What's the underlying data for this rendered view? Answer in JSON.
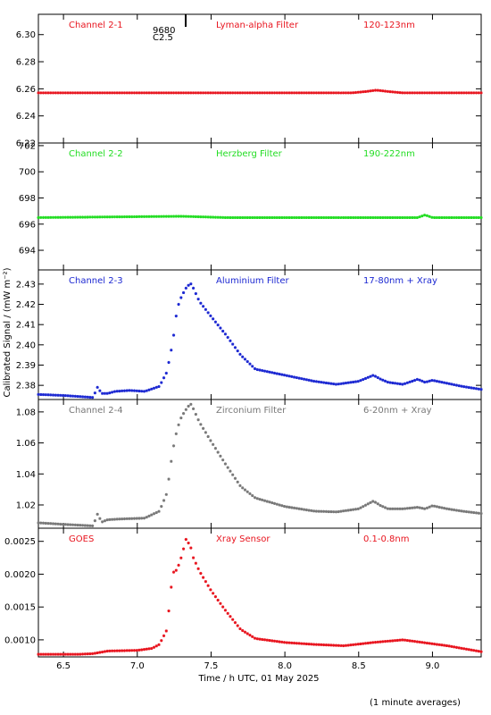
{
  "figure": {
    "ylabel": "Calibrated Signal / (mW m⁻²)",
    "xlabel": "Time / h UTC, 01 May 2025",
    "footer": "(1 minute averages)",
    "annotation_1": "9680",
    "annotation_2": "C2.5"
  },
  "chart_data": [
    {
      "type": "scatter",
      "channel": "Channel 2-1",
      "filter": "Lyman-alpha Filter",
      "band": "120-123nm",
      "color": "#e8141e",
      "ylim": [
        6.22,
        6.315
      ],
      "yticks": [
        "6.22",
        "6.24",
        "6.26",
        "6.28",
        "6.30"
      ],
      "xlim": [
        6.33,
        9.33
      ],
      "series": [
        {
          "x": [
            6.33,
            8.0,
            8.45,
            8.55,
            8.62,
            8.7,
            8.8,
            9.33
          ],
          "y": [
            6.257,
            6.257,
            6.257,
            6.258,
            6.259,
            6.258,
            6.257,
            6.257
          ]
        }
      ]
    },
    {
      "type": "scatter",
      "channel": "Channel 2-2",
      "filter": "Herzberg Filter",
      "band": "190-222nm",
      "color": "#22dd22",
      "ylim": [
        692.5,
        702.2
      ],
      "yticks": [
        "694",
        "696",
        "698",
        "700",
        "702"
      ],
      "xlim": [
        6.33,
        9.33
      ],
      "series": [
        {
          "x": [
            6.33,
            7.3,
            7.6,
            8.9,
            8.95,
            9.0,
            9.33
          ],
          "y": [
            696.5,
            696.6,
            696.5,
            696.5,
            696.7,
            696.5,
            696.5
          ]
        }
      ]
    },
    {
      "type": "scatter",
      "channel": "Channel 2-3",
      "filter": "Aluminium Filter",
      "band": "17-80nm + Xray",
      "color": "#1c28d2",
      "ylim": [
        2.373,
        2.437
      ],
      "yticks": [
        "2.38",
        "2.39",
        "2.40",
        "2.41",
        "2.42",
        "2.43"
      ],
      "xlim": [
        6.33,
        9.33
      ],
      "series": [
        {
          "x": [
            6.33,
            6.5,
            6.7,
            6.73,
            6.76,
            6.8,
            6.85,
            6.95,
            7.05,
            7.15,
            7.2,
            7.24,
            7.27,
            7.3,
            7.33,
            7.36,
            7.38,
            7.42,
            7.5,
            7.6,
            7.7,
            7.8,
            8.0,
            8.2,
            8.35,
            8.5,
            8.6,
            8.65,
            8.7,
            8.8,
            8.9,
            8.95,
            9.0,
            9.1,
            9.2,
            9.33
          ],
          "y": [
            2.3755,
            2.375,
            2.374,
            2.379,
            2.376,
            2.376,
            2.377,
            2.3775,
            2.377,
            2.3795,
            2.3865,
            2.401,
            2.418,
            2.424,
            2.428,
            2.4305,
            2.428,
            2.4215,
            2.414,
            2.405,
            2.395,
            2.388,
            2.385,
            2.382,
            2.3805,
            2.382,
            2.385,
            2.383,
            2.3815,
            2.3805,
            2.383,
            2.3815,
            2.3825,
            2.381,
            2.3795,
            2.378
          ]
        }
      ]
    },
    {
      "type": "scatter",
      "channel": "Channel 2-4",
      "filter": "Zirconium Filter",
      "band": "6-20nm + Xray",
      "color": "#787878",
      "ylim": [
        1.005,
        1.088
      ],
      "yticks": [
        "1.02",
        "1.04",
        "1.06",
        "1.08"
      ],
      "xlim": [
        6.33,
        9.33
      ],
      "series": [
        {
          "x": [
            6.33,
            6.5,
            6.7,
            6.73,
            6.76,
            6.8,
            6.9,
            7.05,
            7.15,
            7.2,
            7.24,
            7.27,
            7.3,
            7.33,
            7.36,
            7.38,
            7.42,
            7.5,
            7.6,
            7.7,
            7.8,
            8.0,
            8.2,
            8.35,
            8.5,
            8.6,
            8.65,
            8.7,
            8.8,
            8.9,
            8.95,
            9.0,
            9.1,
            9.2,
            9.33
          ],
          "y": [
            1.0085,
            1.0075,
            1.0065,
            1.014,
            1.009,
            1.0105,
            1.011,
            1.0115,
            1.016,
            1.0275,
            1.055,
            1.069,
            1.077,
            1.0815,
            1.0855,
            1.082,
            1.0735,
            1.061,
            1.046,
            1.032,
            1.0245,
            1.019,
            1.016,
            1.0155,
            1.0175,
            1.0225,
            1.0195,
            1.0175,
            1.0175,
            1.0185,
            1.0175,
            1.0195,
            1.0175,
            1.016,
            1.0145
          ]
        }
      ]
    },
    {
      "type": "scatter",
      "channel": "GOES",
      "filter": "Xray Sensor",
      "band": "0.1-0.8nm",
      "color": "#e8141e",
      "ylim": [
        0.00074,
        0.0027
      ],
      "yticks": [
        "0.0010",
        "0.0015",
        "0.0020",
        "0.0025"
      ],
      "xlim": [
        6.33,
        9.33
      ],
      "series": [
        {
          "x": [
            6.33,
            6.5,
            6.6,
            6.7,
            6.8,
            7.0,
            7.1,
            7.15,
            7.2,
            7.24,
            7.27,
            7.3,
            7.33,
            7.36,
            7.38,
            7.42,
            7.5,
            7.6,
            7.7,
            7.8,
            8.0,
            8.2,
            8.4,
            8.6,
            8.7,
            8.8,
            9.0,
            9.1,
            9.2,
            9.33
          ],
          "y": [
            0.00078,
            0.00078,
            0.00078,
            0.00079,
            0.00083,
            0.00084,
            0.00087,
            0.00093,
            0.00115,
            0.00202,
            0.00207,
            0.00227,
            0.00253,
            0.00243,
            0.00225,
            0.00205,
            0.00175,
            0.00144,
            0.00116,
            0.00102,
            0.00096,
            0.00093,
            0.00091,
            0.00096,
            0.00098,
            0.001,
            0.00094,
            0.00091,
            0.00087,
            0.00082
          ]
        }
      ]
    }
  ],
  "xaxis": {
    "ticks": [
      "6.5",
      "7.0",
      "7.5",
      "8.0",
      "8.5",
      "9.0"
    ],
    "tick_values": [
      6.5,
      7.0,
      7.5,
      8.0,
      8.5,
      9.0
    ]
  }
}
